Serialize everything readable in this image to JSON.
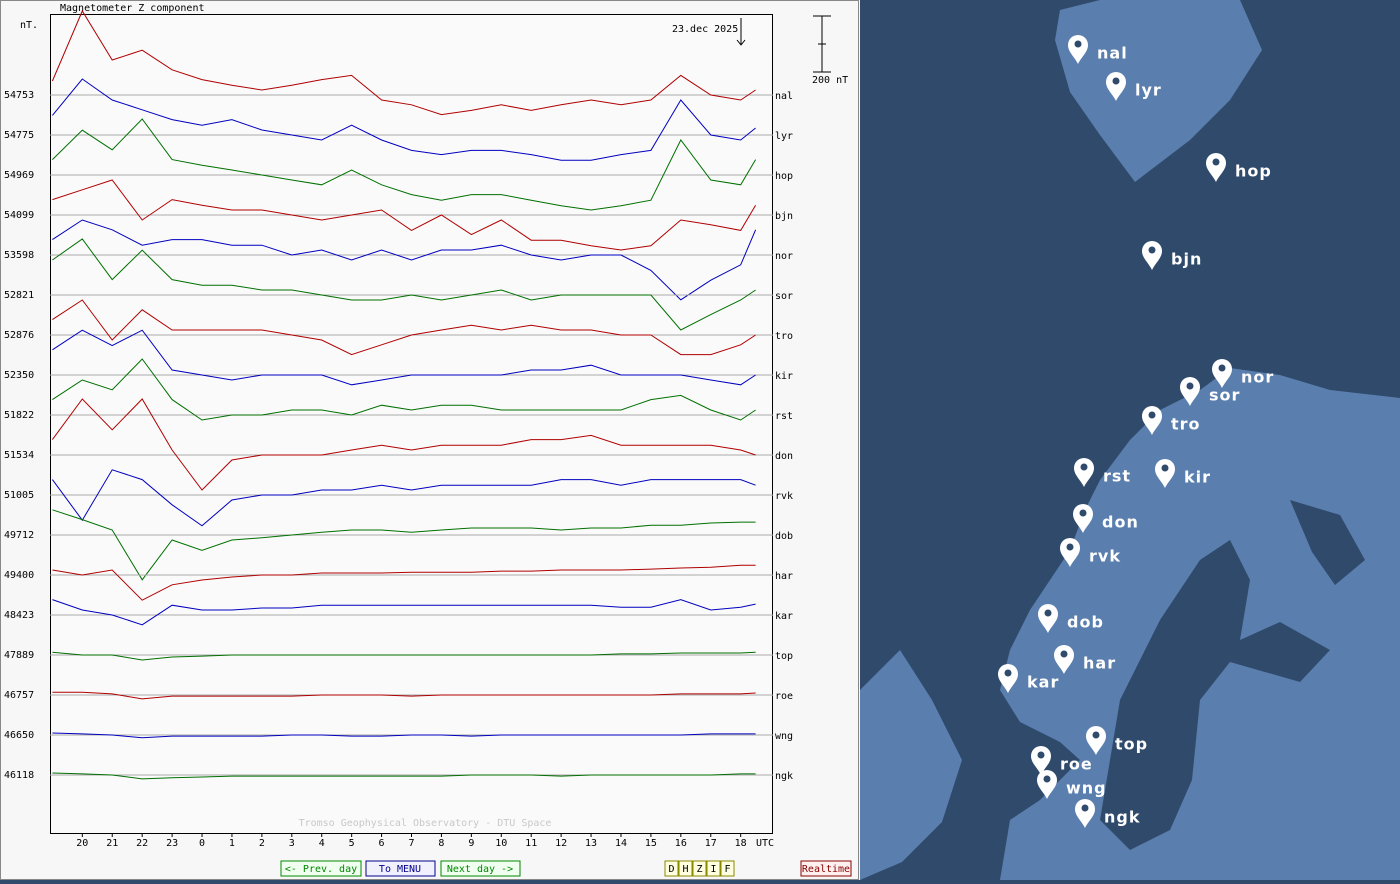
{
  "chart_data": {
    "type": "line",
    "title": "Magnetometer Z component",
    "y_unit": "nT.",
    "date_label": "23.dec 2025",
    "scale_bar": {
      "value": 200,
      "label": "200 nT"
    },
    "x_unit": "UTC",
    "credit": "Tromso Geophysical Observatory - DTU Space",
    "xlim": [
      18.92,
      43.08
    ],
    "xticks": [
      20,
      21,
      22,
      23,
      {
        "value": 24,
        "label": "0"
      },
      {
        "value": 25,
        "label": "1"
      },
      {
        "value": 26,
        "label": "2"
      },
      {
        "value": 27,
        "label": "3"
      },
      {
        "value": 28,
        "label": "4"
      },
      {
        "value": 29,
        "label": "5"
      },
      {
        "value": 30,
        "label": "6"
      },
      {
        "value": 31,
        "label": "7"
      },
      {
        "value": 32,
        "label": "8"
      },
      {
        "value": 33,
        "label": "9"
      },
      {
        "value": 34,
        "label": "10"
      },
      {
        "value": 35,
        "label": "11"
      },
      {
        "value": 36,
        "label": "12"
      },
      {
        "value": 37,
        "label": "13"
      },
      {
        "value": 38,
        "label": "14"
      },
      {
        "value": 39,
        "label": "15"
      },
      {
        "value": 40,
        "label": "16"
      },
      {
        "value": 41,
        "label": "17"
      },
      {
        "value": 42,
        "label": "18"
      }
    ],
    "x": [
      19,
      20,
      21,
      22,
      23,
      24,
      25,
      26,
      27,
      28,
      29,
      30,
      31,
      32,
      33,
      34,
      35,
      36,
      37,
      38,
      39,
      40,
      41,
      42,
      42.5
    ],
    "series": [
      {
        "name": "nal",
        "baseline": "54753",
        "color": "#b00000",
        "values": [
          50,
          300,
          125,
          160,
          90,
          55,
          35,
          18,
          35,
          55,
          70,
          -18,
          -35,
          -70,
          -55,
          -35,
          -55,
          -35,
          -18,
          -35,
          -18,
          70,
          0,
          -18,
          18
        ]
      },
      {
        "name": "lyr",
        "baseline": "54775",
        "color": "#0000c0",
        "values": [
          70,
          200,
          125,
          90,
          55,
          35,
          55,
          18,
          0,
          -18,
          35,
          -18,
          -55,
          -70,
          -55,
          -55,
          -70,
          -90,
          -90,
          -70,
          -55,
          125,
          0,
          -18,
          25
        ]
      },
      {
        "name": "hop",
        "baseline": "54969",
        "color": "#007000",
        "values": [
          55,
          160,
          90,
          200,
          55,
          35,
          18,
          0,
          -18,
          -35,
          18,
          -35,
          -70,
          -90,
          -70,
          -70,
          -90,
          -110,
          -125,
          -110,
          -90,
          125,
          -18,
          -35,
          55
        ]
      },
      {
        "name": "bjn",
        "baseline": "54099",
        "color": "#b00000",
        "values": [
          55,
          90,
          125,
          -18,
          55,
          35,
          18,
          18,
          0,
          -18,
          0,
          18,
          -55,
          0,
          -70,
          -18,
          -90,
          -90,
          -110,
          -125,
          -110,
          -18,
          -35,
          -55,
          35
        ]
      },
      {
        "name": "nor",
        "baseline": "53598",
        "color": "#0000c0",
        "values": [
          55,
          125,
          90,
          35,
          55,
          55,
          35,
          35,
          0,
          18,
          -18,
          18,
          -18,
          18,
          18,
          35,
          0,
          -18,
          0,
          0,
          -55,
          -160,
          -90,
          -35,
          90
        ]
      },
      {
        "name": "sor",
        "baseline": "52821",
        "color": "#007000",
        "values": [
          125,
          200,
          55,
          160,
          55,
          35,
          35,
          18,
          18,
          0,
          -18,
          -18,
          0,
          -18,
          0,
          18,
          -18,
          0,
          0,
          0,
          0,
          -125,
          -70,
          -18,
          18
        ]
      },
      {
        "name": "tro",
        "baseline": "52876",
        "color": "#b00000",
        "values": [
          55,
          125,
          -18,
          90,
          18,
          18,
          18,
          18,
          0,
          -18,
          -70,
          -35,
          0,
          18,
          35,
          18,
          35,
          18,
          18,
          0,
          0,
          -70,
          -70,
          -35,
          0
        ]
      },
      {
        "name": "kir",
        "baseline": "52350",
        "color": "#0000c0",
        "values": [
          90,
          160,
          105,
          160,
          18,
          0,
          -18,
          0,
          0,
          0,
          -35,
          -18,
          0,
          0,
          0,
          0,
          18,
          18,
          35,
          0,
          0,
          0,
          -18,
          -35,
          0
        ]
      },
      {
        "name": "rst",
        "baseline": "51822",
        "color": "#007000",
        "values": [
          55,
          125,
          90,
          200,
          55,
          -18,
          0,
          0,
          18,
          18,
          0,
          35,
          18,
          35,
          35,
          18,
          18,
          18,
          18,
          18,
          55,
          70,
          18,
          -18,
          18
        ]
      },
      {
        "name": "don",
        "baseline": "51534",
        "color": "#b00000",
        "values": [
          55,
          200,
          90,
          200,
          18,
          -125,
          -18,
          0,
          0,
          0,
          18,
          35,
          18,
          35,
          35,
          35,
          55,
          55,
          70,
          35,
          35,
          35,
          35,
          18,
          0
        ]
      },
      {
        "name": "rvk",
        "baseline": "51005",
        "color": "#0000c0",
        "values": [
          55,
          -90,
          90,
          55,
          -35,
          -110,
          -18,
          0,
          0,
          18,
          18,
          35,
          18,
          35,
          35,
          35,
          35,
          55,
          55,
          35,
          55,
          55,
          55,
          55,
          35
        ]
      },
      {
        "name": "dob",
        "baseline": "49712",
        "color": "#007000",
        "values": [
          90,
          55,
          18,
          -160,
          -18,
          -55,
          -18,
          -10,
          0,
          10,
          18,
          18,
          10,
          18,
          25,
          25,
          25,
          18,
          25,
          25,
          35,
          35,
          43,
          46,
          46
        ]
      },
      {
        "name": "har",
        "baseline": "49400",
        "color": "#b00000",
        "values": [
          18,
          0,
          18,
          -90,
          -35,
          -18,
          -7,
          0,
          0,
          7,
          7,
          7,
          10,
          10,
          10,
          14,
          14,
          18,
          18,
          18,
          21,
          25,
          28,
          35,
          35
        ]
      },
      {
        "name": "kar",
        "baseline": "48423",
        "color": "#0000c0",
        "values": [
          55,
          18,
          0,
          -35,
          35,
          18,
          18,
          25,
          25,
          35,
          35,
          35,
          35,
          35,
          35,
          35,
          35,
          35,
          35,
          28,
          28,
          55,
          18,
          28,
          39
        ]
      },
      {
        "name": "top",
        "baseline": "47889",
        "color": "#007000",
        "values": [
          10,
          0,
          0,
          -18,
          -7,
          -4,
          0,
          0,
          0,
          0,
          0,
          0,
          0,
          0,
          0,
          0,
          0,
          0,
          0,
          4,
          4,
          7,
          7,
          7,
          10
        ]
      },
      {
        "name": "roe",
        "baseline": "46757",
        "color": "#b00000",
        "values": [
          10,
          10,
          4,
          -14,
          -4,
          -4,
          -4,
          -4,
          -4,
          0,
          0,
          0,
          -4,
          0,
          0,
          0,
          0,
          0,
          0,
          0,
          0,
          4,
          4,
          4,
          7
        ]
      },
      {
        "name": "wng",
        "baseline": "46650",
        "color": "#0000c0",
        "values": [
          7,
          4,
          0,
          -10,
          -4,
          -4,
          -4,
          -4,
          0,
          0,
          -4,
          -4,
          0,
          0,
          -4,
          0,
          0,
          0,
          0,
          0,
          0,
          0,
          4,
          4,
          4
        ]
      },
      {
        "name": "ngk",
        "baseline": "46118",
        "color": "#007000",
        "values": [
          7,
          4,
          0,
          -14,
          -10,
          -7,
          -4,
          -4,
          -4,
          -4,
          -4,
          -4,
          -4,
          -4,
          0,
          0,
          0,
          -4,
          0,
          0,
          0,
          0,
          0,
          4,
          4
        ]
      }
    ]
  },
  "navigation": {
    "prev": "<- Prev. day",
    "menu": "To MENU",
    "next": "Next day ->",
    "components": [
      "D",
      "H",
      "Z",
      "I",
      "F"
    ],
    "realtime": "Realtime"
  }
}
